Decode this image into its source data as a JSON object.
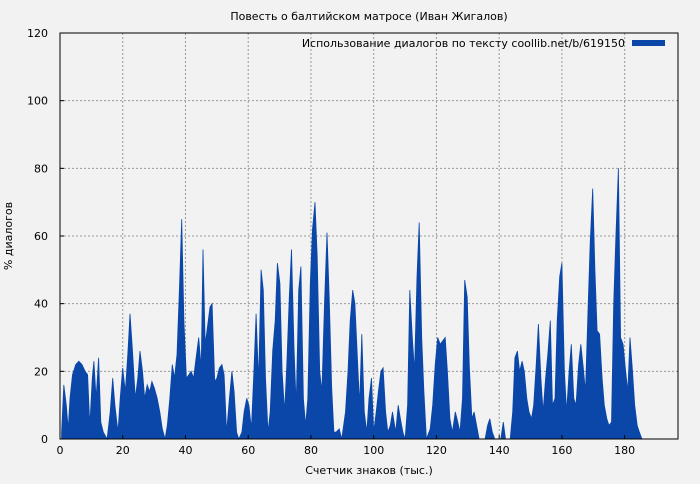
{
  "chart_data": {
    "type": "area",
    "title": "Повесть о балтийском матросе (Иван Жигалов)",
    "xlabel": "Счетчик знаков (тыс.)",
    "ylabel": "% диалогов",
    "xlim": [
      0,
      197
    ],
    "ylim": [
      0,
      120
    ],
    "xticks": [
      0,
      20,
      40,
      60,
      80,
      100,
      120,
      140,
      160,
      180
    ],
    "yticks": [
      0,
      20,
      40,
      60,
      80,
      100,
      120
    ],
    "grid": true,
    "legend": {
      "position": "top-right"
    },
    "series": [
      {
        "name": "Использование диалогов по тексту coollib.net/b/619150",
        "color": "#0a47a9",
        "points": [
          [
            0.5,
            2
          ],
          [
            1.2,
            16
          ],
          [
            2,
            10
          ],
          [
            2.6,
            3
          ],
          [
            3.2,
            12
          ],
          [
            4,
            19
          ],
          [
            5,
            22
          ],
          [
            6,
            23
          ],
          [
            7,
            22
          ],
          [
            8,
            20
          ],
          [
            8.8,
            19
          ],
          [
            9.5,
            4
          ],
          [
            10.3,
            18
          ],
          [
            10.8,
            23
          ],
          [
            11.5,
            12
          ],
          [
            12.3,
            24
          ],
          [
            13,
            5
          ],
          [
            13.8,
            2
          ],
          [
            15,
            0
          ],
          [
            16,
            8
          ],
          [
            16.8,
            18
          ],
          [
            17.5,
            10
          ],
          [
            18.5,
            2
          ],
          [
            19.2,
            12
          ],
          [
            20,
            21
          ],
          [
            20.8,
            14
          ],
          [
            21.6,
            25
          ],
          [
            22.3,
            37
          ],
          [
            23.1,
            26
          ],
          [
            24,
            12
          ],
          [
            24.8,
            18
          ],
          [
            25.5,
            26
          ],
          [
            26.3,
            20
          ],
          [
            27,
            12
          ],
          [
            27.8,
            16
          ],
          [
            28.6,
            14
          ],
          [
            29.3,
            17
          ],
          [
            30.1,
            15
          ],
          [
            31,
            12
          ],
          [
            31.8,
            8
          ],
          [
            32.6,
            3
          ],
          [
            33.5,
            0
          ],
          [
            34.2,
            4
          ],
          [
            35,
            12
          ],
          [
            35.8,
            22
          ],
          [
            36.5,
            18
          ],
          [
            37.3,
            25
          ],
          [
            38.1,
            45
          ],
          [
            38.8,
            65
          ],
          [
            39.5,
            35
          ],
          [
            40.3,
            18
          ],
          [
            41.1,
            19
          ],
          [
            41.8,
            20
          ],
          [
            42.6,
            18
          ],
          [
            43.4,
            24
          ],
          [
            44.2,
            30
          ],
          [
            45,
            21
          ],
          [
            45.6,
            56
          ],
          [
            46.3,
            28
          ],
          [
            47,
            33
          ],
          [
            47.8,
            39
          ],
          [
            48.5,
            40
          ],
          [
            49.3,
            17
          ],
          [
            50,
            18
          ],
          [
            50.8,
            21
          ],
          [
            51.6,
            22
          ],
          [
            52.3,
            19
          ],
          [
            53.1,
            2
          ],
          [
            54,
            12
          ],
          [
            54.8,
            20
          ],
          [
            55.5,
            14
          ],
          [
            56.3,
            2
          ],
          [
            57,
            0
          ],
          [
            58,
            2
          ],
          [
            58.7,
            8
          ],
          [
            59.5,
            12
          ],
          [
            60.2,
            10
          ],
          [
            61,
            3
          ],
          [
            61.8,
            20
          ],
          [
            62.5,
            37
          ],
          [
            63.3,
            17
          ],
          [
            64.1,
            50
          ],
          [
            64.8,
            44
          ],
          [
            65.5,
            18
          ],
          [
            66.3,
            2
          ],
          [
            67,
            8
          ],
          [
            67.8,
            26
          ],
          [
            68.6,
            35
          ],
          [
            69.3,
            52
          ],
          [
            70.1,
            46
          ],
          [
            70.8,
            20
          ],
          [
            71.6,
            8
          ],
          [
            72.3,
            22
          ],
          [
            73.1,
            42
          ],
          [
            73.8,
            56
          ],
          [
            74.6,
            27
          ],
          [
            75.3,
            10
          ],
          [
            76.1,
            44
          ],
          [
            76.8,
            51
          ],
          [
            77.6,
            12
          ],
          [
            78.3,
            4
          ],
          [
            79,
            12
          ],
          [
            79.8,
            46
          ],
          [
            80.5,
            62
          ],
          [
            81.3,
            70
          ],
          [
            82,
            54
          ],
          [
            82.8,
            20
          ],
          [
            83.5,
            14
          ],
          [
            84.3,
            40
          ],
          [
            85.1,
            61
          ],
          [
            85.8,
            42
          ],
          [
            86.6,
            15
          ],
          [
            87.3,
            2
          ],
          [
            88,
            2
          ],
          [
            89,
            3
          ],
          [
            89.8,
            0
          ],
          [
            91,
            8
          ],
          [
            91.8,
            20
          ],
          [
            92.5,
            35
          ],
          [
            93.3,
            44
          ],
          [
            94,
            40
          ],
          [
            94.8,
            24
          ],
          [
            95.5,
            10
          ],
          [
            96.2,
            31
          ],
          [
            97,
            8
          ],
          [
            97.8,
            2
          ],
          [
            98.5,
            12
          ],
          [
            99.3,
            18
          ],
          [
            100,
            2
          ],
          [
            100.8,
            8
          ],
          [
            101.5,
            14
          ],
          [
            102.3,
            20
          ],
          [
            103,
            21
          ],
          [
            103.8,
            8
          ],
          [
            104.5,
            2
          ],
          [
            105.3,
            4
          ],
          [
            106,
            8
          ],
          [
            107,
            2
          ],
          [
            107.8,
            10
          ],
          [
            108.5,
            6
          ],
          [
            109.3,
            2
          ],
          [
            110,
            0
          ],
          [
            110.8,
            10
          ],
          [
            111.5,
            44
          ],
          [
            112.3,
            30
          ],
          [
            113,
            20
          ],
          [
            113.8,
            48
          ],
          [
            114.5,
            64
          ],
          [
            115.3,
            30
          ],
          [
            116,
            14
          ],
          [
            116.8,
            0
          ],
          [
            118,
            3
          ],
          [
            118.8,
            10
          ],
          [
            119.6,
            22
          ],
          [
            120.4,
            30
          ],
          [
            121.2,
            28
          ],
          [
            122,
            29
          ],
          [
            122.8,
            30
          ],
          [
            123.5,
            20
          ],
          [
            124.3,
            6
          ],
          [
            125.1,
            2
          ],
          [
            126,
            8
          ],
          [
            126.8,
            5
          ],
          [
            127.5,
            2
          ],
          [
            128.3,
            12
          ],
          [
            129,
            47
          ],
          [
            129.8,
            42
          ],
          [
            130.5,
            21
          ],
          [
            131.3,
            6
          ],
          [
            132,
            8
          ],
          [
            132.8,
            4
          ],
          [
            133.6,
            0
          ],
          [
            135.5,
            0
          ],
          [
            136.3,
            4
          ],
          [
            137,
            6
          ],
          [
            137.8,
            2
          ],
          [
            138.6,
            0
          ],
          [
            140.5,
            0
          ],
          [
            141.3,
            5
          ],
          [
            142,
            0
          ],
          [
            143.5,
            0
          ],
          [
            144.3,
            8
          ],
          [
            145,
            24
          ],
          [
            145.8,
            26
          ],
          [
            146.5,
            20
          ],
          [
            147.3,
            23
          ],
          [
            148,
            20
          ],
          [
            148.8,
            12
          ],
          [
            149.5,
            8
          ],
          [
            150.3,
            6
          ],
          [
            151,
            10
          ],
          [
            151.8,
            22
          ],
          [
            152.5,
            34
          ],
          [
            153.3,
            18
          ],
          [
            154,
            8
          ],
          [
            154.8,
            18
          ],
          [
            155.5,
            25
          ],
          [
            156.3,
            35
          ],
          [
            157,
            10
          ],
          [
            157.8,
            12
          ],
          [
            158.5,
            35
          ],
          [
            159.3,
            48
          ],
          [
            160,
            52
          ],
          [
            160.8,
            20
          ],
          [
            161.5,
            8
          ],
          [
            162.3,
            20
          ],
          [
            163,
            28
          ],
          [
            163.8,
            12
          ],
          [
            164.5,
            10
          ],
          [
            165.3,
            22
          ],
          [
            166,
            28
          ],
          [
            166.8,
            21
          ],
          [
            167.5,
            14
          ],
          [
            168.3,
            38
          ],
          [
            169,
            58
          ],
          [
            169.8,
            74
          ],
          [
            170.5,
            50
          ],
          [
            171.2,
            32
          ],
          [
            172,
            31
          ],
          [
            172.8,
            18
          ],
          [
            173.5,
            10
          ],
          [
            174.3,
            6
          ],
          [
            175,
            4
          ],
          [
            175.8,
            5
          ],
          [
            176.5,
            40
          ],
          [
            177.2,
            60
          ],
          [
            178,
            80
          ],
          [
            178.7,
            30
          ],
          [
            179.5,
            28
          ],
          [
            180.2,
            21
          ],
          [
            181,
            14
          ],
          [
            181.7,
            30
          ],
          [
            182.5,
            20
          ],
          [
            183.2,
            10
          ],
          [
            184,
            4
          ],
          [
            184.7,
            2
          ],
          [
            185.5,
            0
          ]
        ]
      }
    ]
  }
}
